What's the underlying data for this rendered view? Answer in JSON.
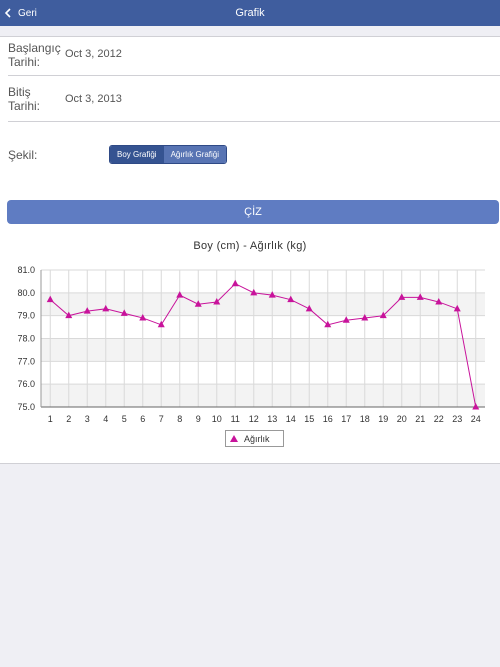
{
  "navbar": {
    "back_label": "Geri",
    "title": "Grafik",
    "back_icon": "chevron-left-icon"
  },
  "form": {
    "start_label": "Başlangıç\nTarihi:",
    "start_value": "Oct 3, 2012",
    "end_label": "Bitiş\nTarihi:",
    "end_value": "Oct 3, 2013",
    "shape_label": "Şekil:",
    "segments": [
      "Boy Grafiği",
      "Ağırlık Grafiği"
    ],
    "selected_segment": "Boy Grafiği"
  },
  "draw_button": {
    "label": "ÇİZ"
  },
  "colors": {
    "navbar": "#3f5d9e",
    "accent": "#5f7cc2",
    "series": "#c8139b"
  },
  "chart_data": {
    "type": "line",
    "title": "Boy (cm) - Ağırlık (kg)",
    "x": [
      1,
      2,
      3,
      4,
      5,
      6,
      7,
      8,
      9,
      10,
      11,
      12,
      13,
      14,
      15,
      16,
      17,
      18,
      19,
      20,
      21,
      22,
      23,
      24
    ],
    "y_ticks": [
      "75.0",
      "76.0",
      "77.0",
      "78.0",
      "79.0",
      "80.0",
      "81.0"
    ],
    "ylim": [
      75,
      81
    ],
    "grid": true,
    "legend_position": "bottom",
    "series": [
      {
        "name": "Ağırlık",
        "marker": "triangle",
        "values": [
          79.7,
          79.0,
          79.2,
          79.3,
          79.1,
          78.9,
          78.6,
          79.9,
          79.5,
          79.6,
          80.4,
          80.0,
          79.9,
          79.7,
          79.3,
          78.6,
          78.8,
          78.9,
          79.0,
          79.8,
          79.8,
          79.6,
          79.3,
          75.0
        ]
      }
    ]
  }
}
